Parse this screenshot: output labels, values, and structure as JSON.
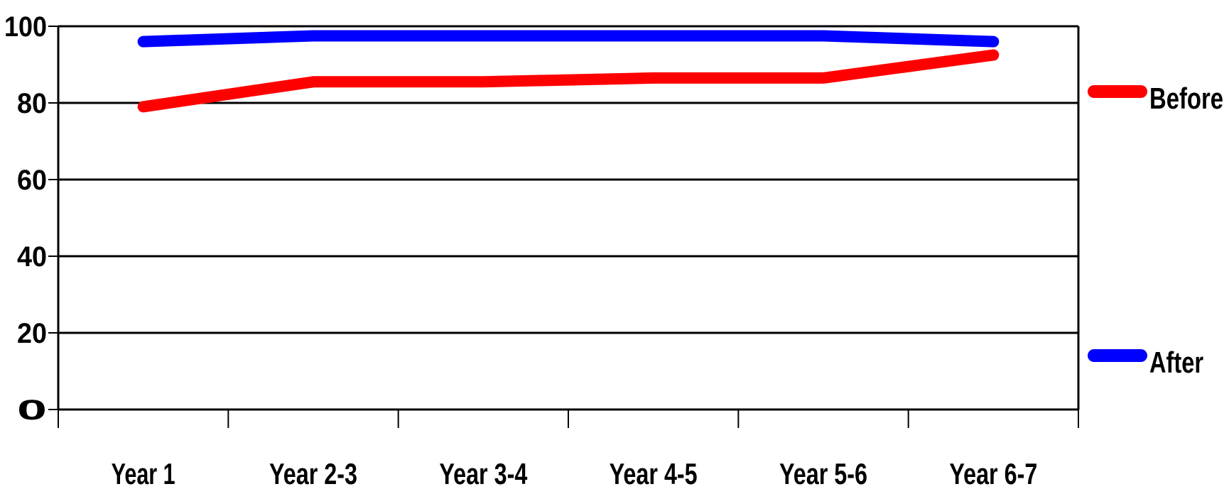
{
  "chart_data": {
    "type": "line",
    "categories": [
      "Year 1",
      "Year 2-3",
      "Year 3-4",
      "Year 4-5",
      "Year 5-6",
      "Year 6-7"
    ],
    "series": [
      {
        "name": "Before",
        "color": "#ff0000",
        "values": [
          79,
          85.5,
          85.5,
          86.5,
          86.5,
          92.5
        ]
      },
      {
        "name": "After",
        "color": "#0000ff",
        "values": [
          96,
          97.5,
          97.5,
          97.5,
          97.5,
          96
        ]
      }
    ],
    "ylim": [
      0,
      100
    ],
    "yticks": [
      0,
      20,
      40,
      60,
      80,
      100
    ],
    "grid": true,
    "legend": "right"
  }
}
